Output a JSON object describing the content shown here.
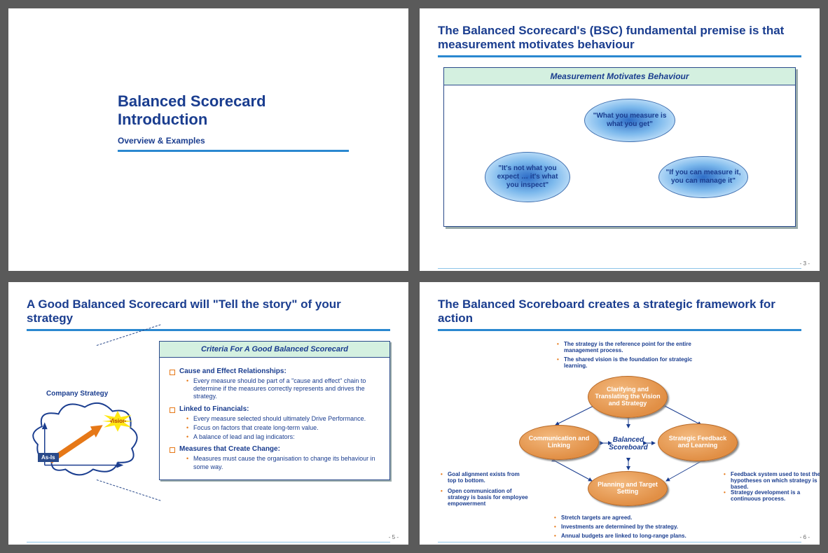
{
  "colors": {
    "brand_blue": "#1a3d8f",
    "rule_blue": "#2a88d0",
    "mint": "#d4f0e0",
    "orange": "#e67817",
    "oval_fill": "#e18f45",
    "bubble_blue": "#7bb8ec",
    "page_bg": "#5a5a5a"
  },
  "slide1": {
    "title": "Balanced Scorecard Introduction",
    "subtitle": "Overview & Examples"
  },
  "slide2": {
    "title": "The Balanced Scorecard's (BSC) fundamental premise is that measurement motivates behaviour",
    "box_header": "Measurement Motivates Behaviour",
    "bubbles": [
      "\"What you measure is what you get\"",
      "\"It's not what you expect … it's what you inspect\"",
      "\"If you can measure it, you can manage it\""
    ],
    "page": "- 3 -"
  },
  "slide3": {
    "title": "A Good Balanced Scorecard will \"Tell the story\" of your strategy",
    "box_header": "Criteria For A Good Balanced Scorecard",
    "criteria": [
      {
        "heading": "Cause and Effect Relationships:",
        "items": [
          "Every measure should be part of a \"cause and effect\" chain to determine if the measures correctly represents and drives the strategy."
        ]
      },
      {
        "heading": "Linked to Financials:",
        "items": [
          "Every measure selected should ultimately Drive Performance.",
          "Focus on factors that create long-term value.",
          "A balance of lead and lag indicators:"
        ]
      },
      {
        "heading": "Measures that Create Change:",
        "items": [
          "Measures must cause the organisation to change its behaviour in some way."
        ]
      }
    ],
    "cloud_label": "Company Strategy",
    "asis": "As-Is",
    "vision": "Vision",
    "page": "- 5 -"
  },
  "slide4": {
    "title": "The Balanced Scoreboard creates a strategic framework for action",
    "top_notes": [
      "The strategy is the reference point for the entire management process.",
      "The shared vision is the foundation for strategic learning."
    ],
    "left_notes": [
      "Goal alignment exists from top to bottom.",
      "Open communication of strategy is basis for employee empowerment"
    ],
    "right_notes": [
      "Feedback system used to test the hypotheses on which strategy is based.",
      "Strategy development is a continuous process."
    ],
    "bottom_notes": [
      "Stretch targets are agreed.",
      "Investments are determined by the strategy.",
      "Annual budgets are linked to long-range plans."
    ],
    "ovals": {
      "top": "Clarifying and Translating the Vision and Strategy",
      "left": "Communication and Linking",
      "right": "Strategic Feedback and Learning",
      "bottom": "Planning and Target Setting"
    },
    "center": "Balanced Scoreboard",
    "page": "- 6 -"
  }
}
